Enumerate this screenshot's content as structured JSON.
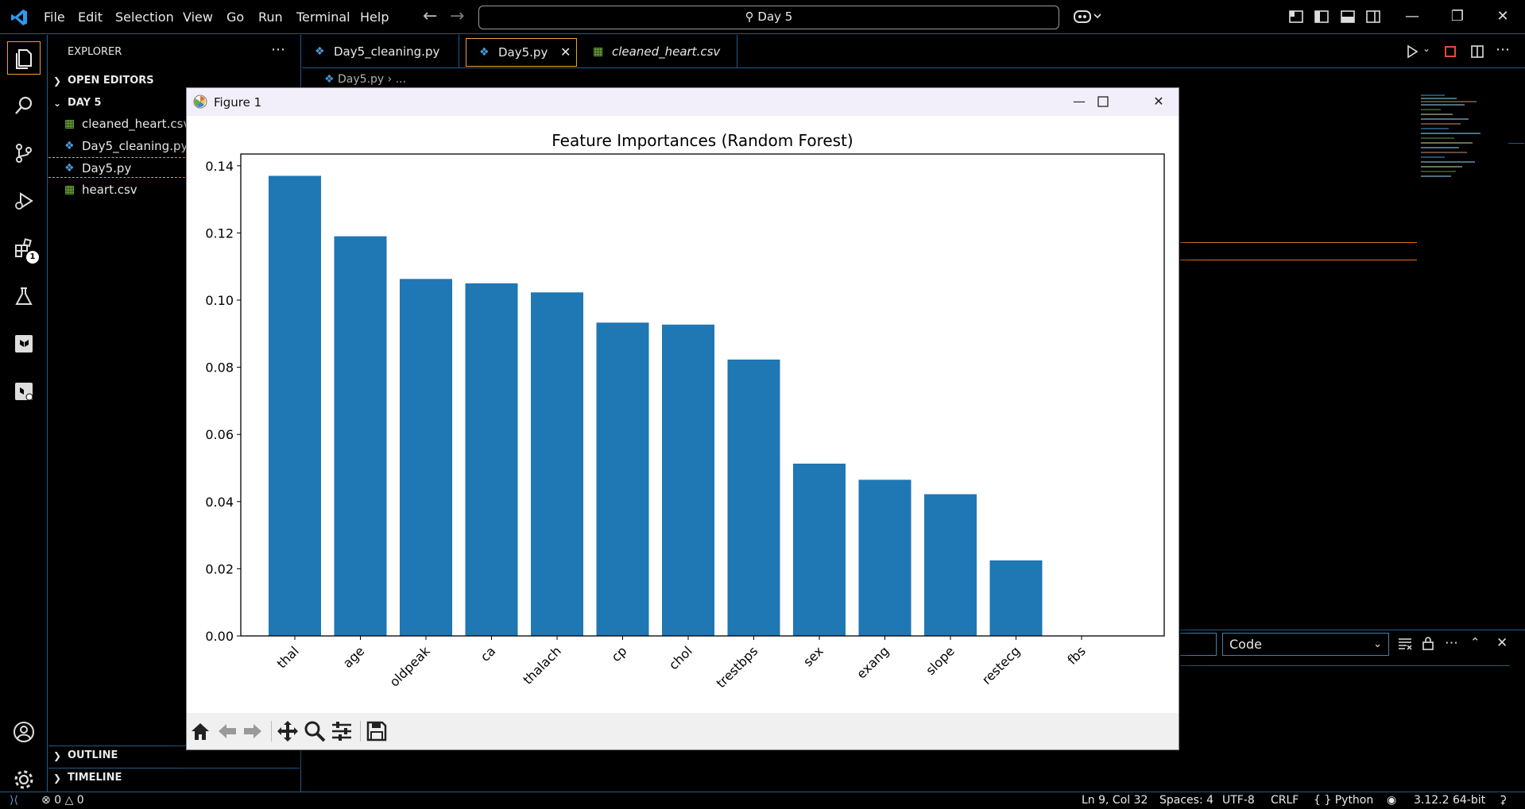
{
  "menu": [
    "File",
    "Edit",
    "Selection",
    "View",
    "Go",
    "Run",
    "Terminal",
    "Help"
  ],
  "command_center": "Day 5",
  "sidebar": {
    "title": "EXPLORER",
    "open_editors": "OPEN EDITORS",
    "folder": "DAY 5",
    "files": [
      "cleaned_heart.csv",
      "Day5_cleaning.py",
      "Day5.py",
      "heart.csv"
    ],
    "outline": "OUTLINE",
    "timeline": "TIMELINE"
  },
  "activity": {
    "extensions_badge": "1"
  },
  "tabs": [
    "Day5_cleaning.py",
    "Day5.py",
    "cleaned_heart.csv"
  ],
  "breadcrumb": {
    "file": "Day5.py",
    "rest": "..."
  },
  "panel": {
    "select_value": "Code"
  },
  "figure": {
    "window_title": "Figure 1"
  },
  "chart_data": {
    "type": "bar",
    "title": "Feature Importances (Random Forest)",
    "xlabel": "",
    "ylabel": "",
    "categories": [
      "thal",
      "age",
      "oldpeak",
      "ca",
      "thalach",
      "cp",
      "chol",
      "trestbps",
      "sex",
      "exang",
      "slope",
      "restecg",
      "fbs"
    ],
    "values": [
      0.137,
      0.119,
      0.1063,
      0.105,
      0.1023,
      0.0933,
      0.0927,
      0.0823,
      0.0513,
      0.0465,
      0.0422,
      0.0225,
      0.0
    ],
    "ylim": [
      0,
      0.1435
    ],
    "yticks": [
      "0.00",
      "0.02",
      "0.04",
      "0.06",
      "0.08",
      "0.10",
      "0.12",
      "0.14"
    ],
    "bar_color": "#1f77b4",
    "grid": false
  },
  "status": {
    "problems_errors": "0",
    "problems_warnings": "0",
    "cursor": "Ln 9, Col 32",
    "spaces": "Spaces: 4",
    "encoding": "UTF-8",
    "eol": "CRLF",
    "language": "Python",
    "interpreter": "3.12.2 64-bit"
  },
  "colors": {
    "accent_border": "#1f5d8a",
    "focus_orange": "#f0a030"
  }
}
